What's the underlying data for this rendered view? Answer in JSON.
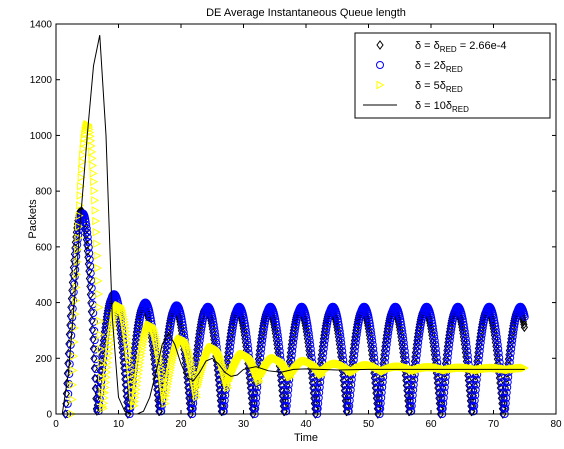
{
  "chart_data": {
    "type": "scatter",
    "title": "DE Average Instantaneous Queue length",
    "xlabel": "Time",
    "ylabel": "Packets",
    "xlim": [
      0,
      80
    ],
    "ylim": [
      0,
      1400
    ],
    "xticks": [
      0,
      10,
      20,
      30,
      40,
      50,
      60,
      70,
      80
    ],
    "yticks": [
      0,
      200,
      400,
      600,
      800,
      1000,
      1200,
      1400
    ],
    "grid": false,
    "legend_position": "top-right",
    "series": [
      {
        "name": "δ = δ_RED = 2.66e-4",
        "legend_main": "δ = δ",
        "legend_sub": "RED",
        "legend_tail": " = 2.66e-4",
        "marker": "diamond",
        "color": "#000000",
        "t_start": 1.5,
        "t_end": 75,
        "period": 5.0,
        "peaks": [
          730,
          420,
          390,
          380,
          380,
          375,
          375,
          375,
          375,
          375,
          375,
          375,
          375,
          375,
          375
        ],
        "troughs": [
          0,
          0,
          0,
          0,
          0,
          0,
          0,
          0,
          0,
          0,
          0,
          0,
          0,
          0,
          0
        ]
      },
      {
        "name": "δ = 2δ_RED",
        "legend_main": "δ = 2δ",
        "legend_sub": "RED",
        "legend_tail": "",
        "marker": "circle",
        "color": "#0000ff",
        "t_start": 1.8,
        "t_end": 75,
        "period": 5.0,
        "peaks": [
          720,
          430,
          400,
          390,
          385,
          385,
          385,
          385,
          385,
          385,
          385,
          385,
          385,
          385,
          385
        ],
        "troughs": [
          0,
          0,
          0,
          0,
          0,
          0,
          0,
          0,
          0,
          0,
          0,
          0,
          0,
          0,
          0
        ]
      },
      {
        "name": "δ = 5δ_RED",
        "legend_main": "δ = 5δ",
        "legend_sub": "RED",
        "legend_tail": "",
        "marker": "triangle-right",
        "color": "#ffff00",
        "t_start": 2.5,
        "t_end": 75,
        "period": 5.0,
        "peaks": [
          1040,
          390,
          320,
          270,
          240,
          215,
          200,
          190,
          180,
          175,
          170,
          168,
          166,
          165,
          165
        ],
        "troughs": [
          0,
          10,
          30,
          60,
          90,
          115,
          130,
          140,
          148,
          152,
          155,
          157,
          158,
          158,
          159
        ]
      },
      {
        "name": "δ = 10δ_RED",
        "legend_main": "δ = 10δ",
        "legend_sub": "RED",
        "legend_tail": "",
        "marker": "line",
        "color": "#000000",
        "x": [
          0,
          1.0,
          2.0,
          3.0,
          4.0,
          5.0,
          6.0,
          7.0,
          8.0,
          9.0,
          10.0,
          11.0,
          12.0,
          13.0,
          14.0,
          15.0,
          16.0,
          17.0,
          18.0,
          19.0,
          20.0,
          21.0,
          22.0,
          23.0,
          24.0,
          25.0,
          26.0,
          27.0,
          28.0,
          29.0,
          30.0,
          32.0,
          34.0,
          36.0,
          38.0,
          40.0,
          45.0,
          50.0,
          55.0,
          60.0,
          65.0,
          70.0,
          75.0
        ],
        "y": [
          0,
          0,
          150,
          420,
          720,
          1000,
          1250,
          1360,
          1000,
          350,
          60,
          10,
          0,
          0,
          10,
          60,
          150,
          250,
          290,
          250,
          180,
          130,
          120,
          150,
          190,
          200,
          180,
          150,
          135,
          140,
          160,
          170,
          155,
          150,
          160,
          162,
          158,
          160,
          160,
          160,
          160,
          160,
          160
        ]
      }
    ]
  }
}
